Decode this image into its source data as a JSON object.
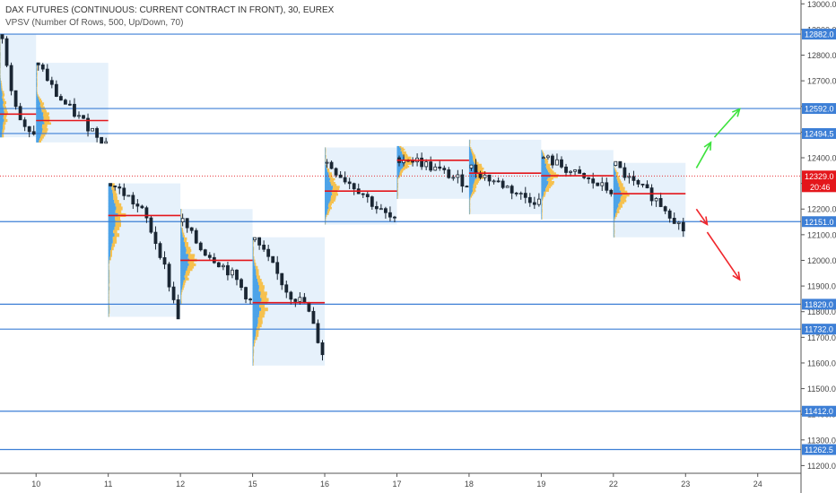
{
  "header": {
    "title": "DAX FUTURES (CONTINUOUS: CURRENT CONTRACT IN FRONT), 30, EUREX",
    "indicator": "VPSV (Number Of Rows, 500, Up/Down, 70)"
  },
  "colors": {
    "level_line": "#3d7fd6",
    "poc_line": "#e4161b",
    "candle": "#1a2633",
    "vp_up": "#4da3e8",
    "vp_down": "#f6c14e",
    "vp_box": "#e6f1fb",
    "up_arrow": "#3de23d",
    "down_arrow": "#f0272c",
    "current_price_bg": "#e4161b"
  },
  "chart_data": {
    "type": "candlestick",
    "x_ticks": [
      {
        "label": "10",
        "x": 1.0
      },
      {
        "label": "11",
        "x": 2.0
      },
      {
        "label": "12",
        "x": 3.0
      },
      {
        "label": "15",
        "x": 4.0
      },
      {
        "label": "16",
        "x": 5.0
      },
      {
        "label": "17",
        "x": 6.0
      },
      {
        "label": "18",
        "x": 7.0
      },
      {
        "label": "19",
        "x": 8.0
      },
      {
        "label": "22",
        "x": 9.0
      },
      {
        "label": "23",
        "x": 10.0
      },
      {
        "label": "24",
        "x": 11.0
      }
    ],
    "xlim": [
      0.5,
      11.6
    ],
    "ylim": [
      11170,
      13015
    ],
    "y_ticks": [
      11200,
      11300,
      11400,
      11500,
      11600,
      11700,
      11800,
      11900,
      12000,
      12100,
      12200,
      12300,
      12400,
      12500,
      12600,
      12700,
      12800,
      12900,
      13000
    ],
    "y_tick_labels": [
      "11200.0",
      "11300.0",
      "11400.0",
      "11500.0",
      "11600.0",
      "11700.0",
      "11800.0",
      "11900.0",
      "12000.0",
      "12100.0",
      "12200.0",
      "12300.0",
      "12400.0",
      "12500.0",
      "12600.0",
      "12700.0",
      "12800.0",
      "12900.0",
      "13000.0"
    ],
    "levels": [
      {
        "value": 12882,
        "label": "12882.0"
      },
      {
        "value": 12592,
        "label": "12592.0"
      },
      {
        "value": 12494.5,
        "label": "12494.5"
      },
      {
        "value": 12151,
        "label": "12151.0"
      },
      {
        "value": 11829,
        "label": "11829.0"
      },
      {
        "value": 11732,
        "label": "11732.0"
      },
      {
        "value": 11412,
        "label": "11412.0"
      },
      {
        "value": 11262.5,
        "label": "11262.5"
      }
    ],
    "current_price": {
      "value": 12329,
      "label": "12329.0",
      "countdown": "20:46"
    },
    "sessions": [
      {
        "x0": 0.5,
        "x1": 1.0,
        "high": 12880,
        "low": 12480,
        "poc": 12570,
        "anchors": [
          12880,
          12700,
          12570,
          12500,
          12480
        ]
      },
      {
        "x0": 1.0,
        "x1": 2.0,
        "high": 12770,
        "low": 12460,
        "poc": 12545,
        "anchors": [
          12770,
          12650,
          12580,
          12520,
          12460
        ]
      },
      {
        "x0": 2.0,
        "x1": 3.0,
        "high": 12300,
        "low": 11780,
        "poc": 12175,
        "anchors": [
          12300,
          12250,
          12180,
          12020,
          11780
        ]
      },
      {
        "x0": 3.0,
        "x1": 4.0,
        "high": 12200,
        "low": 11830,
        "poc": 12000,
        "anchors": [
          12150,
          12050,
          12000,
          11940,
          11840
        ]
      },
      {
        "x0": 4.0,
        "x1": 5.0,
        "high": 12090,
        "low": 11590,
        "poc": 11835,
        "anchors": [
          12080,
          11980,
          11870,
          11830,
          11640
        ]
      },
      {
        "x0": 5.0,
        "x1": 6.0,
        "high": 12440,
        "low": 12140,
        "poc": 12270,
        "anchors": [
          12380,
          12320,
          12270,
          12200,
          12150
        ]
      },
      {
        "x0": 6.0,
        "x1": 7.0,
        "high": 12445,
        "low": 12240,
        "poc": 12390,
        "anchors": [
          12400,
          12390,
          12360,
          12330,
          12300
        ]
      },
      {
        "x0": 7.0,
        "x1": 8.0,
        "high": 12470,
        "low": 12180,
        "poc": 12340,
        "anchors": [
          12360,
          12320,
          12290,
          12250,
          12230
        ]
      },
      {
        "x0": 8.0,
        "x1": 9.0,
        "high": 12430,
        "low": 12160,
        "poc": 12330,
        "anchors": [
          12400,
          12370,
          12330,
          12300,
          12270
        ]
      },
      {
        "x0": 9.0,
        "x1": 10.0,
        "high": 12380,
        "low": 12090,
        "poc": 12260,
        "anchors": [
          12370,
          12300,
          12260,
          12200,
          12120
        ]
      }
    ],
    "arrows_up": [
      {
        "from": [
          10.15,
          12360
        ],
        "to": [
          10.35,
          12460
        ]
      },
      {
        "from": [
          10.4,
          12480
        ],
        "to": [
          10.75,
          12590
        ]
      }
    ],
    "arrows_down": [
      {
        "from": [
          10.15,
          12200
        ],
        "to": [
          10.3,
          12140
        ]
      },
      {
        "from": [
          10.3,
          12110
        ],
        "to": [
          10.75,
          11925
        ]
      }
    ]
  }
}
